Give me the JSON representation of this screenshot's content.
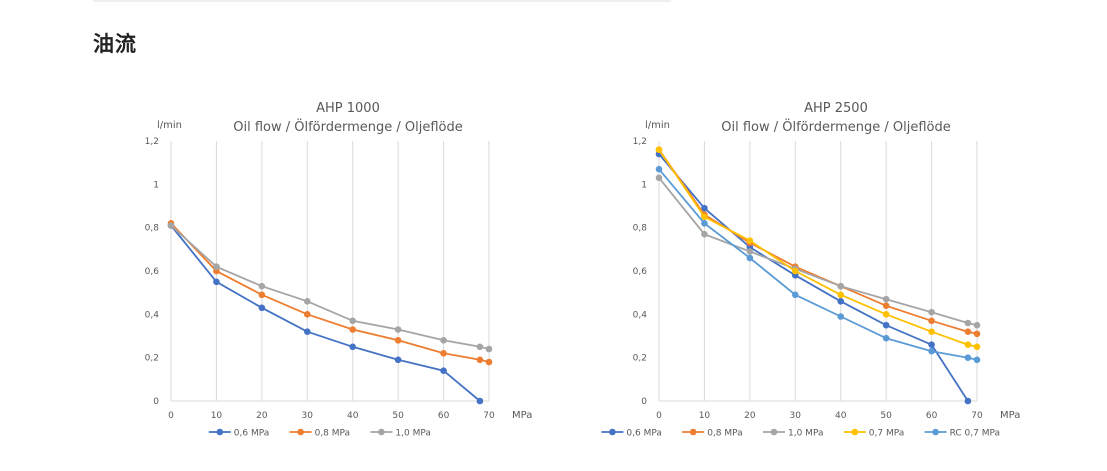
{
  "section": {
    "title": "油流"
  },
  "chart_data": [
    {
      "type": "line",
      "title": "AHP 1000",
      "subtitle": "Oil flow / Ölfördermenge / Oljeflöde",
      "ylabel": "l/min",
      "xlabel": "MPa",
      "ylim": [
        0,
        1.2
      ],
      "xlim": [
        0,
        70
      ],
      "y_ticks": [
        "0",
        "0,2",
        "0,4",
        "0,6",
        "0,8",
        "1",
        "1,2"
      ],
      "x_ticks": [
        "0",
        "10",
        "20",
        "30",
        "40",
        "50",
        "60",
        "70"
      ],
      "grid": "vertical",
      "legend": "bottom",
      "series": [
        {
          "name": "0,6 MPa",
          "color": "#4472C4",
          "points": [
            [
              0,
              0.81
            ],
            [
              10,
              0.55
            ],
            [
              20,
              0.43
            ],
            [
              30,
              0.32
            ],
            [
              40,
              0.25
            ],
            [
              50,
              0.19
            ],
            [
              60,
              0.14
            ],
            [
              68,
              0.0
            ]
          ]
        },
        {
          "name": "0,8 MPa",
          "color": "#ED7D31",
          "points": [
            [
              0,
              0.82
            ],
            [
              10,
              0.6
            ],
            [
              20,
              0.49
            ],
            [
              30,
              0.4
            ],
            [
              40,
              0.33
            ],
            [
              50,
              0.28
            ],
            [
              60,
              0.22
            ],
            [
              68,
              0.19
            ],
            [
              70,
              0.18
            ]
          ]
        },
        {
          "name": "1,0 MPa",
          "color": "#A5A5A5",
          "points": [
            [
              0,
              0.81
            ],
            [
              10,
              0.62
            ],
            [
              20,
              0.53
            ],
            [
              30,
              0.46
            ],
            [
              40,
              0.37
            ],
            [
              50,
              0.33
            ],
            [
              60,
              0.28
            ],
            [
              68,
              0.25
            ],
            [
              70,
              0.24
            ]
          ]
        }
      ]
    },
    {
      "type": "line",
      "title": "AHP 2500",
      "subtitle": "Oil flow / Ölfördermenge / Oljeflöde",
      "ylabel": "l/min",
      "xlabel": "MPa",
      "ylim": [
        0,
        1.2
      ],
      "xlim": [
        0,
        70
      ],
      "y_ticks": [
        "0",
        "0,2",
        "0,4",
        "0,6",
        "0,8",
        "1",
        "1,2"
      ],
      "x_ticks": [
        "0",
        "10",
        "20",
        "30",
        "40",
        "50",
        "60",
        "70"
      ],
      "grid": "vertical",
      "legend": "bottom",
      "series": [
        {
          "name": "0,6 MPa",
          "color": "#4472C4",
          "points": [
            [
              0,
              1.14
            ],
            [
              10,
              0.89
            ],
            [
              20,
              0.71
            ],
            [
              30,
              0.58
            ],
            [
              40,
              0.46
            ],
            [
              50,
              0.35
            ],
            [
              60,
              0.26
            ],
            [
              68,
              0.0
            ]
          ]
        },
        {
          "name": "0,8 MPa",
          "color": "#ED7D31",
          "points": [
            [
              0,
              1.16
            ],
            [
              10,
              0.86
            ],
            [
              20,
              0.73
            ],
            [
              30,
              0.62
            ],
            [
              40,
              0.53
            ],
            [
              50,
              0.44
            ],
            [
              60,
              0.37
            ],
            [
              68,
              0.32
            ],
            [
              70,
              0.31
            ]
          ]
        },
        {
          "name": "1,0 MPa",
          "color": "#A5A5A5",
          "points": [
            [
              0,
              1.03
            ],
            [
              10,
              0.77
            ],
            [
              20,
              0.69
            ],
            [
              30,
              0.61
            ],
            [
              40,
              0.53
            ],
            [
              50,
              0.47
            ],
            [
              60,
              0.41
            ],
            [
              68,
              0.36
            ],
            [
              70,
              0.35
            ]
          ]
        },
        {
          "name": "0,7 MPa",
          "color": "#FFC000",
          "points": [
            [
              0,
              1.16
            ],
            [
              10,
              0.85
            ],
            [
              20,
              0.74
            ],
            [
              30,
              0.6
            ],
            [
              40,
              0.49
            ],
            [
              50,
              0.4
            ],
            [
              60,
              0.32
            ],
            [
              68,
              0.26
            ],
            [
              70,
              0.25
            ]
          ]
        },
        {
          "name": "RC 0,7 MPa",
          "color": "#5B9BD5",
          "points": [
            [
              0,
              1.07
            ],
            [
              10,
              0.82
            ],
            [
              20,
              0.66
            ],
            [
              30,
              0.49
            ],
            [
              40,
              0.39
            ],
            [
              50,
              0.29
            ],
            [
              60,
              0.23
            ],
            [
              68,
              0.2
            ],
            [
              70,
              0.19
            ]
          ]
        }
      ]
    }
  ]
}
